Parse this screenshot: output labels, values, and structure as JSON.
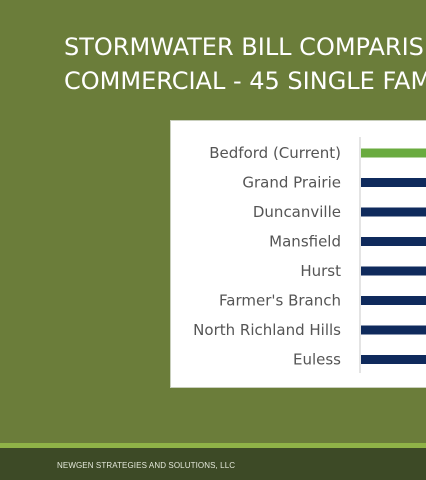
{
  "slide": {
    "title_line1": "STORMWATER BILL COMPARIS",
    "title_line2_bold": "COMMERCIAL",
    "title_line2_rest": " - 45 SINGLE FAM"
  },
  "footer": {
    "company": "NEWGEN STRATEGIES AND SOLUTIONS, LLC"
  },
  "colors": {
    "background": "#6b7d3a",
    "highlight_bar": "#6aab3f",
    "default_bar": "#0f2a5c",
    "footer_stripe": "#8fb347",
    "footer_bar": "#3d4a26"
  },
  "chart_data": {
    "type": "bar",
    "orientation": "horizontal",
    "categories": [
      "Bedford (Current)",
      "Grand Prairie",
      "Duncanville",
      "Mansfield",
      "Hurst",
      "Farmer's Branch",
      "North Richland Hills",
      "Euless"
    ],
    "values": [
      null,
      null,
      null,
      null,
      null,
      null,
      null,
      null
    ],
    "highlight_index": 0,
    "note_values": "bar lengths extend past the visible crop; values not readable"
  }
}
